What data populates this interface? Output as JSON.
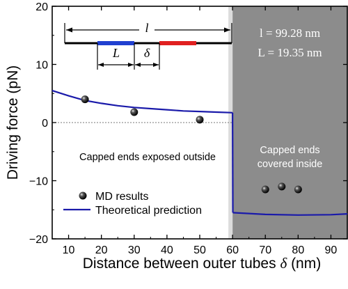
{
  "chart_data": {
    "type": "scatter",
    "xlabel": "Distance between outer tubes δ (nm)",
    "xlabel_text": "Distance between outer tubes",
    "xlabel_symbol": "δ",
    "xlabel_unit": "(nm)",
    "ylabel": "Driving force (pN)",
    "xlim": [
      5,
      95
    ],
    "ylim": [
      -20,
      20
    ],
    "xticks": [
      10,
      20,
      30,
      40,
      50,
      60,
      70,
      80,
      90
    ],
    "yticks": [
      20,
      10,
      0,
      -10,
      -20
    ],
    "grid": false,
    "legend_position": "bottom-left",
    "shaded_region": {
      "x": [
        60,
        95
      ],
      "color": "#8c8c8c"
    },
    "series": [
      {
        "name": "MD results",
        "kind": "points",
        "color": "#000000",
        "x": [
          15,
          30,
          50,
          70,
          75,
          80
        ],
        "y": [
          4.0,
          1.8,
          0.5,
          -11.5,
          -11.0,
          -11.5
        ]
      },
      {
        "name": "Theoretical prediction",
        "kind": "line",
        "color": "#1a1aaa",
        "x": [
          5,
          10,
          15,
          20,
          25,
          30,
          35,
          40,
          45,
          50,
          55,
          60,
          60.1,
          70,
          80,
          90,
          95
        ],
        "y": [
          5.5,
          4.6,
          3.8,
          3.3,
          2.9,
          2.6,
          2.4,
          2.2,
          2.0,
          1.9,
          1.8,
          1.7,
          -15.5,
          -15.8,
          -15.9,
          -15.85,
          -15.7
        ]
      }
    ],
    "annotations": {
      "outside": "Capped ends exposed outside",
      "inside_line1": "Capped ends",
      "inside_line2": "covered inside",
      "param_l": "l = 99.28 nm",
      "param_L": "L = 19.35 nm"
    },
    "inset": {
      "label_l": "l",
      "label_L": "L",
      "label_delta": "δ",
      "colors": {
        "tube1": "#2040d0",
        "tube2": "#e02020"
      }
    },
    "zero_line": {
      "style": "dotted",
      "color": "#777777"
    }
  }
}
